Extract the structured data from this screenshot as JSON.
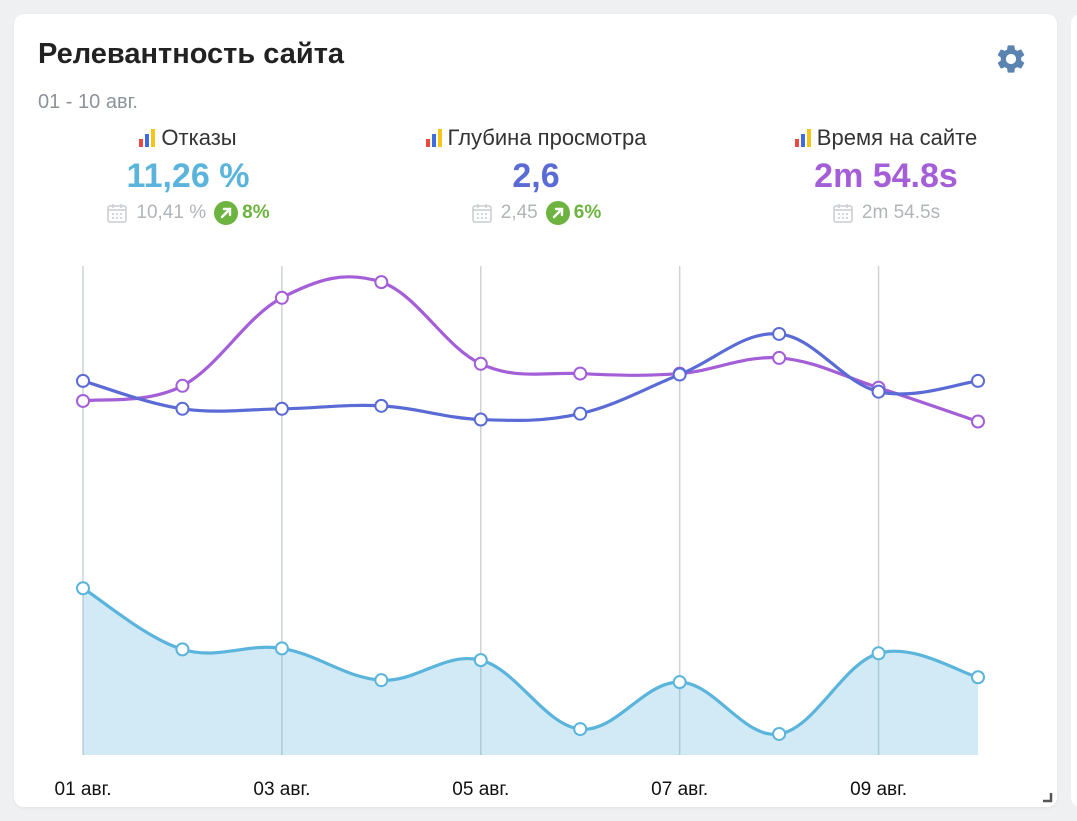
{
  "widget": {
    "title": "Релевантность сайта",
    "date_range": "01 - 10 авг.",
    "settings_icon": "gear-icon"
  },
  "metrics": [
    {
      "label": "Отказы",
      "value": "11,26 %",
      "color": "#5ab4db",
      "compare_value": "10,41 %",
      "change": "8%",
      "change_direction": "up"
    },
    {
      "label": "Глубина просмотра",
      "value": "2,6",
      "color": "#5b6bd6",
      "compare_value": "2,45",
      "change": "6%",
      "change_direction": "up"
    },
    {
      "label": "Время на сайте",
      "value": "2m 54.8s",
      "color": "#a35ed8",
      "compare_value": "2m 54.5s",
      "change": null
    }
  ],
  "chart_data": {
    "type": "line",
    "categories": [
      "01 авг.",
      "02 авг.",
      "03 авг.",
      "04 авг.",
      "05 авг.",
      "06 авг.",
      "07 авг.",
      "08 авг.",
      "09 авг.",
      "10 авг."
    ],
    "tick_labels": [
      "01 авг.",
      "03 авг.",
      "05 авг.",
      "07 авг.",
      "09 авг."
    ],
    "ylim": [
      0,
      100
    ],
    "grid": "vertical",
    "series": [
      {
        "name": "Время на сайте",
        "color": "#a35ed8",
        "area": false,
        "values": [
          72.4,
          75.5,
          93.5,
          96.7,
          80.0,
          78.0,
          78.0,
          81.2,
          75.1,
          68.2
        ]
      },
      {
        "name": "Глубина просмотра",
        "color": "#5b6bd6",
        "area": false,
        "values": [
          76.5,
          70.8,
          70.8,
          71.4,
          68.6,
          69.8,
          77.8,
          86.1,
          74.3,
          76.5
        ]
      },
      {
        "name": "Отказы",
        "color": "#5ab4db",
        "area": true,
        "values": [
          34.1,
          21.6,
          21.8,
          15.3,
          19.4,
          5.3,
          14.9,
          4.3,
          20.8,
          15.9
        ]
      }
    ]
  }
}
